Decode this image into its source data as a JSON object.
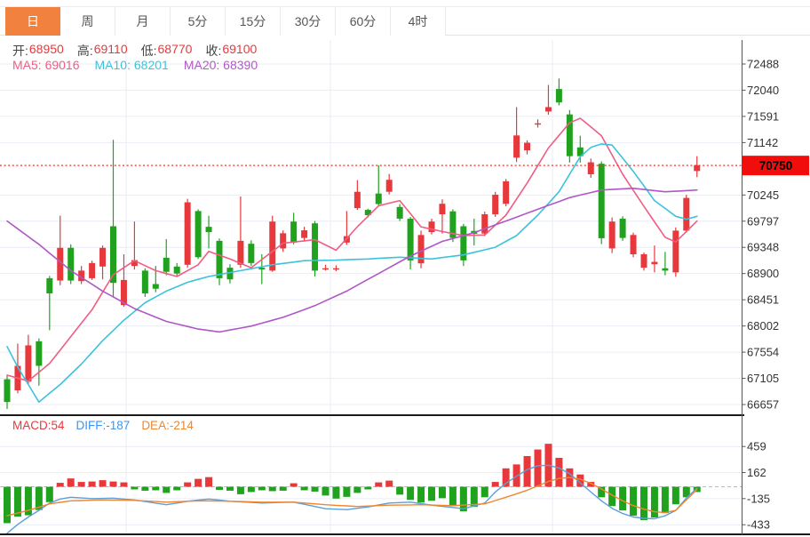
{
  "header": {
    "tabs": [
      {
        "label": "日",
        "active": true
      },
      {
        "label": "周",
        "active": false
      },
      {
        "label": "月",
        "active": false
      },
      {
        "label": "5分",
        "active": false
      },
      {
        "label": "15分",
        "active": false
      },
      {
        "label": "30分",
        "active": false
      },
      {
        "label": "60分",
        "active": false
      },
      {
        "label": "4时",
        "active": false
      }
    ]
  },
  "legend": {
    "ohlc": [
      {
        "label": "开:",
        "value": "68950"
      },
      {
        "label": "高:",
        "value": "69110"
      },
      {
        "label": "低:",
        "value": "68770"
      },
      {
        "label": "收:",
        "value": "69100"
      }
    ],
    "ma": [
      {
        "label": "MA5:",
        "value": "69016",
        "color": "#ef5e82"
      },
      {
        "label": "MA10:",
        "value": "68201",
        "color": "#3cc3dc"
      },
      {
        "label": "MA20:",
        "value": "68390",
        "color": "#b057c6"
      }
    ],
    "macd": [
      {
        "label": "MACD:",
        "value": "54",
        "color": "#e7393c"
      },
      {
        "label": "DIFF:",
        "value": "-187",
        "color": "#3c95ee"
      },
      {
        "label": "DEA:",
        "value": "-214",
        "color": "#f0862f"
      }
    ]
  },
  "colors": {
    "up_candle": "#e7393c",
    "down_candle": "#21a21f",
    "ma5": "#ef5e82",
    "ma10": "#3cc3dc",
    "ma20": "#b057c6",
    "diff_line": "#5b9fdc",
    "dea_line": "#f0862f",
    "grid": "#e9eef5",
    "axis_text": "#333333",
    "current_price_line": "#f23131",
    "price_badge_bg": "#f20d0d",
    "price_badge_text": "#000000",
    "active_tab": "#f0813e"
  },
  "chart_data": [
    {
      "type": "candlestick",
      "panel": "main",
      "y_ticks": [
        72488,
        72040,
        71591,
        71142,
        70245,
        69797,
        69348,
        68900,
        68451,
        68002,
        67554,
        67105,
        66657
      ],
      "last_price": 70750,
      "legend_values": {
        "ma5": 69016,
        "ma10": 68201,
        "ma20": 68390
      },
      "candles": [
        [
          67090,
          67150,
          66580,
          66700
        ],
        [
          66900,
          67700,
          66850,
          67320
        ],
        [
          67050,
          67850,
          67000,
          67670
        ],
        [
          67740,
          67790,
          66980,
          67320
        ],
        [
          68820,
          68860,
          67930,
          68560
        ],
        [
          68780,
          69890,
          68700,
          69340
        ],
        [
          69340,
          69400,
          68720,
          68780
        ],
        [
          68770,
          69030,
          68720,
          68950
        ],
        [
          68820,
          69120,
          68790,
          69080
        ],
        [
          69020,
          69380,
          68800,
          69340
        ],
        [
          69710,
          71190,
          68490,
          68740
        ],
        [
          68360,
          69230,
          68330,
          68790
        ],
        [
          69030,
          69790,
          68970,
          69130
        ],
        [
          68950,
          68990,
          68500,
          68560
        ],
        [
          68720,
          69030,
          68580,
          68640
        ],
        [
          69170,
          69490,
          68870,
          68930
        ],
        [
          69020,
          69080,
          68860,
          68900
        ],
        [
          69050,
          70180,
          69000,
          70120
        ],
        [
          69970,
          70000,
          69150,
          69180
        ],
        [
          69700,
          69890,
          69330,
          69610
        ],
        [
          69460,
          69500,
          68700,
          68820
        ],
        [
          69000,
          69060,
          68730,
          68800
        ],
        [
          69050,
          70220,
          69000,
          69460
        ],
        [
          69410,
          69470,
          69030,
          69080
        ],
        [
          69000,
          69230,
          68720,
          68970
        ],
        [
          68950,
          69890,
          68930,
          69790
        ],
        [
          69330,
          69640,
          69270,
          69590
        ],
        [
          69790,
          69940,
          69400,
          69430
        ],
        [
          69510,
          69700,
          69450,
          69640
        ],
        [
          69760,
          69800,
          68850,
          68950
        ],
        [
          68990,
          69050,
          68950,
          68990
        ],
        [
          68990,
          69040,
          68940,
          68990
        ],
        [
          69430,
          69970,
          69390,
          69540
        ],
        [
          70020,
          70500,
          69990,
          70300
        ],
        [
          69990,
          70010,
          69860,
          69900
        ],
        [
          70270,
          70755,
          70060,
          70090
        ],
        [
          70300,
          70605,
          70255,
          70505
        ],
        [
          70040,
          70090,
          69800,
          69840
        ],
        [
          69840,
          69870,
          68970,
          69125
        ],
        [
          69075,
          69635,
          68990,
          69560
        ],
        [
          69610,
          69840,
          69570,
          69790
        ],
        [
          69915,
          70170,
          69585,
          70095
        ],
        [
          69965,
          70000,
          69440,
          69510
        ],
        [
          69710,
          69750,
          69030,
          69125
        ],
        [
          69630,
          69840,
          69380,
          69580
        ],
        [
          69585,
          69960,
          69540,
          69915
        ],
        [
          69915,
          70300,
          69870,
          70250
        ],
        [
          70095,
          70520,
          70050,
          70480
        ],
        [
          70885,
          71750,
          70810,
          71265
        ],
        [
          71010,
          71180,
          70940,
          71140
        ],
        [
          71470,
          71540,
          71400,
          71472
        ],
        [
          71675,
          72130,
          71620,
          71750
        ],
        [
          72060,
          72240,
          71780,
          71830
        ],
        [
          71625,
          71700,
          70800,
          70910
        ],
        [
          71060,
          71260,
          70800,
          70910
        ],
        [
          70600,
          70870,
          70540,
          70805
        ],
        [
          70780,
          70820,
          69405,
          69505
        ],
        [
          69330,
          69860,
          69250,
          69790
        ],
        [
          69840,
          69880,
          69460,
          69510
        ],
        [
          69230,
          69600,
          69180,
          69560
        ],
        [
          69000,
          69260,
          68950,
          69230
        ],
        [
          69060,
          69380,
          68920,
          69100
        ],
        [
          68990,
          69270,
          68870,
          68950
        ],
        [
          68920,
          69690,
          68845,
          69635
        ],
        [
          69635,
          70250,
          69600,
          70195
        ],
        [
          70655,
          70910,
          70550,
          70755
        ]
      ],
      "ma5_points": [
        [
          1,
          67160
        ],
        [
          3,
          67060
        ],
        [
          5,
          67360
        ],
        [
          7,
          67820
        ],
        [
          9,
          68280
        ],
        [
          11,
          68880
        ],
        [
          13,
          69120
        ],
        [
          15,
          68950
        ],
        [
          17,
          68850
        ],
        [
          19,
          69050
        ],
        [
          20,
          69280
        ],
        [
          22,
          69150
        ],
        [
          24,
          69000
        ],
        [
          27,
          69420
        ],
        [
          30,
          69480
        ],
        [
          32,
          69300
        ],
        [
          34,
          69700
        ],
        [
          36,
          70060
        ],
        [
          38,
          70150
        ],
        [
          40,
          69700
        ],
        [
          42,
          69620
        ],
        [
          44,
          69550
        ],
        [
          46,
          69560
        ],
        [
          48,
          69900
        ],
        [
          50,
          70450
        ],
        [
          52,
          71050
        ],
        [
          54,
          71480
        ],
        [
          55,
          71560
        ],
        [
          57,
          71260
        ],
        [
          59,
          70600
        ],
        [
          61,
          70050
        ],
        [
          63,
          69520
        ],
        [
          64,
          69440
        ],
        [
          66,
          69800
        ]
      ],
      "ma10_points": [
        [
          1,
          67650
        ],
        [
          2,
          67300
        ],
        [
          4,
          66700
        ],
        [
          6,
          67000
        ],
        [
          8,
          67350
        ],
        [
          10,
          67750
        ],
        [
          12,
          68100
        ],
        [
          14,
          68400
        ],
        [
          16,
          68600
        ],
        [
          18,
          68750
        ],
        [
          20,
          68850
        ],
        [
          23,
          68950
        ],
        [
          26,
          69050
        ],
        [
          29,
          69120
        ],
        [
          32,
          69130
        ],
        [
          35,
          69150
        ],
        [
          38,
          69180
        ],
        [
          41,
          69150
        ],
        [
          44,
          69220
        ],
        [
          47,
          69350
        ],
        [
          49,
          69550
        ],
        [
          51,
          69900
        ],
        [
          53,
          70300
        ],
        [
          55,
          70900
        ],
        [
          56,
          71060
        ],
        [
          57,
          71120
        ],
        [
          58,
          71100
        ],
        [
          60,
          70650
        ],
        [
          62,
          70150
        ],
        [
          64,
          69880
        ],
        [
          65,
          69830
        ],
        [
          66,
          69880
        ]
      ],
      "ma20_points": [
        [
          1,
          69800
        ],
        [
          4,
          69400
        ],
        [
          7,
          68950
        ],
        [
          10,
          68600
        ],
        [
          13,
          68300
        ],
        [
          16,
          68080
        ],
        [
          19,
          67950
        ],
        [
          21,
          67900
        ],
        [
          24,
          68000
        ],
        [
          27,
          68150
        ],
        [
          30,
          68350
        ],
        [
          33,
          68600
        ],
        [
          36,
          68900
        ],
        [
          39,
          69200
        ],
        [
          42,
          69450
        ],
        [
          45,
          69600
        ],
        [
          48,
          69800
        ],
        [
          51,
          70000
        ],
        [
          54,
          70200
        ],
        [
          57,
          70330
        ],
        [
          60,
          70360
        ],
        [
          63,
          70300
        ],
        [
          66,
          70330
        ]
      ]
    },
    {
      "type": "bar",
      "panel": "macd",
      "y_ticks": [
        459,
        162,
        -135,
        -433
      ],
      "legend_values": {
        "macd": 54,
        "diff": -187,
        "dea": -214
      },
      "histogram": [
        -415,
        -340,
        -325,
        -265,
        -175,
        45,
        95,
        55,
        60,
        75,
        60,
        50,
        -30,
        -45,
        -40,
        -70,
        -40,
        50,
        90,
        110,
        -35,
        -45,
        -85,
        -60,
        -40,
        -50,
        -45,
        40,
        -40,
        -55,
        -100,
        -135,
        -115,
        -70,
        -30,
        50,
        70,
        -90,
        -150,
        -180,
        -160,
        -130,
        -220,
        -280,
        -230,
        -120,
        55,
        210,
        255,
        350,
        425,
        490,
        330,
        210,
        140,
        55,
        -120,
        -220,
        -270,
        -330,
        -380,
        -350,
        -300,
        -200,
        -120,
        -60
      ],
      "diff_points": [
        [
          1,
          -530
        ],
        [
          2,
          -430
        ],
        [
          3,
          -345
        ],
        [
          4,
          -270
        ],
        [
          5,
          -185
        ],
        [
          6,
          -140
        ],
        [
          7,
          -120
        ],
        [
          9,
          -135
        ],
        [
          11,
          -130
        ],
        [
          13,
          -150
        ],
        [
          16,
          -205
        ],
        [
          18,
          -165
        ],
        [
          20,
          -140
        ],
        [
          22,
          -165
        ],
        [
          25,
          -185
        ],
        [
          28,
          -175
        ],
        [
          31,
          -250
        ],
        [
          33,
          -260
        ],
        [
          35,
          -230
        ],
        [
          37,
          -185
        ],
        [
          39,
          -175
        ],
        [
          41,
          -210
        ],
        [
          44,
          -250
        ],
        [
          46,
          -185
        ],
        [
          47,
          -60
        ],
        [
          48,
          40
        ],
        [
          49,
          120
        ],
        [
          50,
          195
        ],
        [
          51,
          240
        ],
        [
          52,
          245
        ],
        [
          53,
          215
        ],
        [
          54,
          150
        ],
        [
          55,
          45
        ],
        [
          56,
          -60
        ],
        [
          57,
          -160
        ],
        [
          58,
          -245
        ],
        [
          59,
          -305
        ],
        [
          60,
          -345
        ],
        [
          61,
          -360
        ],
        [
          62,
          -365
        ],
        [
          63,
          -330
        ],
        [
          64,
          -270
        ],
        [
          65,
          -130
        ],
        [
          66,
          -15
        ]
      ],
      "dea_points": [
        [
          1,
          -330
        ],
        [
          3,
          -270
        ],
        [
          5,
          -195
        ],
        [
          7,
          -160
        ],
        [
          10,
          -150
        ],
        [
          13,
          -155
        ],
        [
          16,
          -175
        ],
        [
          19,
          -160
        ],
        [
          22,
          -165
        ],
        [
          25,
          -175
        ],
        [
          28,
          -175
        ],
        [
          31,
          -205
        ],
        [
          34,
          -225
        ],
        [
          37,
          -210
        ],
        [
          40,
          -205
        ],
        [
          43,
          -215
        ],
        [
          46,
          -195
        ],
        [
          48,
          -120
        ],
        [
          50,
          -40
        ],
        [
          52,
          60
        ],
        [
          53,
          95
        ],
        [
          54,
          105
        ],
        [
          55,
          85
        ],
        [
          56,
          40
        ],
        [
          57,
          -25
        ],
        [
          58,
          -95
        ],
        [
          59,
          -160
        ],
        [
          60,
          -215
        ],
        [
          61,
          -255
        ],
        [
          62,
          -285
        ],
        [
          63,
          -295
        ],
        [
          64,
          -270
        ],
        [
          65,
          -150
        ],
        [
          66,
          -30
        ]
      ]
    }
  ]
}
